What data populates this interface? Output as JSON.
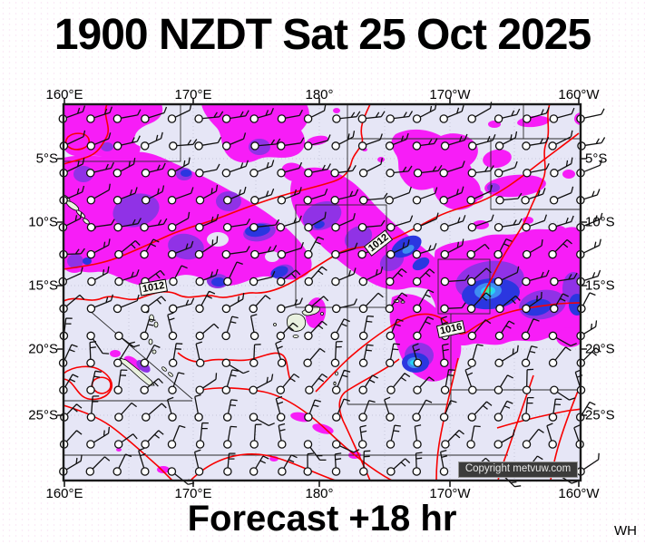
{
  "header": {
    "title": "1900 NZDT Sat 25 Oct 2025"
  },
  "map": {
    "axes": {
      "top": [
        "160°E",
        "170°E",
        "180°",
        "170°W",
        "160°W"
      ],
      "bottom": [
        "160°E",
        "170°E",
        "180°",
        "170°W",
        "160°W"
      ],
      "left": [
        "5°S",
        "10°S",
        "15°S",
        "20°S",
        "25°S"
      ],
      "right": [
        "5°S",
        "10°S",
        "15°S",
        "20°S",
        "25°S"
      ]
    },
    "isobar_labels": {
      "west": "1012",
      "central": "1012",
      "east": "1016"
    },
    "copyright": "Copyright metvuw.com",
    "colors": {
      "sea": "#e6e6f6",
      "land": "#e9f1df",
      "rain_light": "#f71df7",
      "rain_moderate": "#9032e6",
      "rain_heavy": "#2b36e0",
      "rain_very_heavy": "#3f8df2",
      "rain_intense": "#25d5f5",
      "rain_extreme": "#3af29e",
      "isobar": "#f80000",
      "coast": "#000000",
      "domain_line": "#2a2a2a",
      "graticule": "#a8a8c0",
      "barb": "#101010",
      "frame": "#1a1a1a"
    }
  },
  "footer": {
    "forecast_label": "Forecast +18 hr",
    "initials": "WH"
  }
}
